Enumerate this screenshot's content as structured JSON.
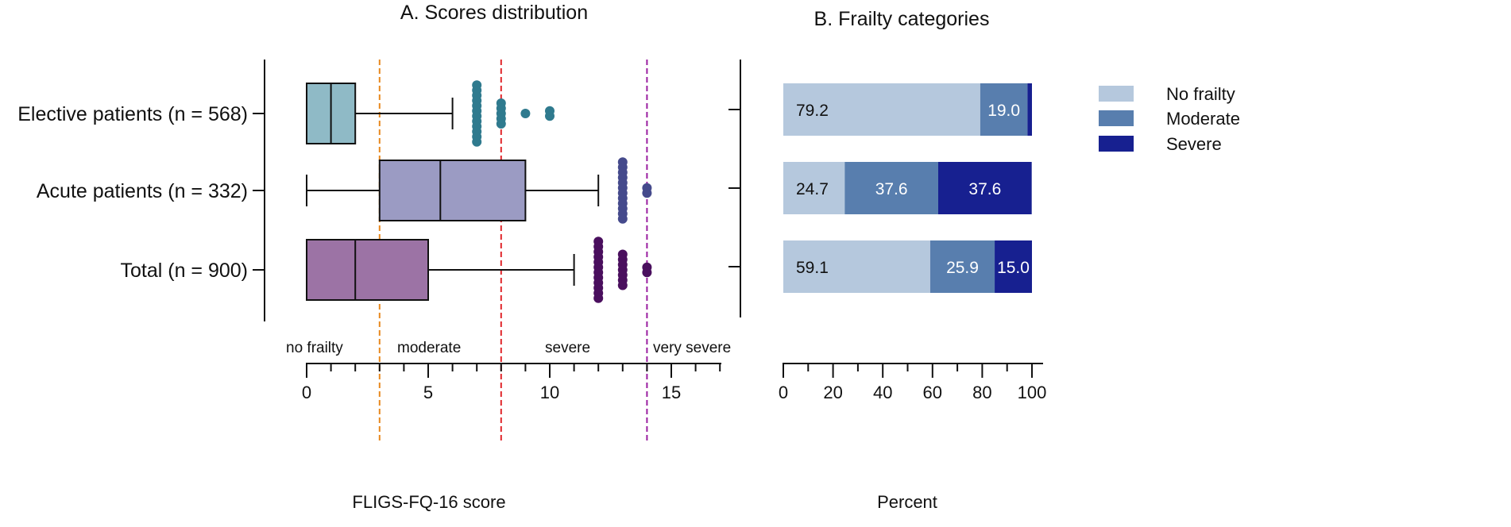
{
  "chart_data": [
    {
      "type": "boxplot",
      "title": "A. Scores distribution",
      "xlabel": "FLIGS-FQ-16 score",
      "xlim": [
        0,
        17
      ],
      "x_major_ticks": [
        0,
        5,
        10,
        15
      ],
      "x_tick_labels": [
        "0",
        "5",
        "10",
        "15"
      ],
      "groups": [
        {
          "label": "Elective patients (n = 568)",
          "min": 0,
          "q1": 0,
          "median": 1,
          "q3": 2,
          "max": 6,
          "outliers": [
            [
              7,
              12
            ],
            [
              8,
              5
            ],
            [
              9,
              1
            ],
            [
              10,
              2
            ]
          ],
          "color": "#8fbac6",
          "outlier_color": "#2f7a8e"
        },
        {
          "label": "Acute patients (n = 332)",
          "min": 0,
          "q1": 3,
          "median": 5.5,
          "q3": 9,
          "max": 12,
          "outliers": [
            [
              13,
              12
            ],
            [
              14,
              2
            ]
          ],
          "color": "#9b9bc3",
          "outlier_color": "#454a8c"
        },
        {
          "label": "Total (n = 900)",
          "min": 0,
          "q1": 0,
          "median": 2,
          "q3": 5,
          "max": 11,
          "outliers": [
            [
              12,
              12
            ],
            [
              13,
              7
            ],
            [
              14,
              2
            ]
          ],
          "color": "#9c73a5",
          "outlier_color": "#4a0f5e"
        }
      ],
      "thresholds": [
        {
          "value": 3,
          "color": "#e8891e"
        },
        {
          "value": 8,
          "color": "#e0262b"
        },
        {
          "value": 14,
          "color": "#9a1ea0"
        }
      ],
      "zones": [
        "no frailty",
        "moderate",
        "severe",
        "very severe"
      ]
    },
    {
      "type": "stacked-bar",
      "title": "B. Frailty categories",
      "xlabel": "Percent",
      "xlim": [
        0,
        100
      ],
      "x_tick_labels": [
        "0",
        "20",
        "40",
        "60",
        "80",
        "100"
      ],
      "legend_position": "right",
      "series": [
        {
          "name": "No frailty",
          "color": "#b5c8dd",
          "values": [
            79.2,
            24.7,
            59.1
          ],
          "labels": [
            "79.2",
            "24.7",
            "59.1"
          ]
        },
        {
          "name": "Moderate",
          "color": "#587eae",
          "values": [
            19.0,
            37.6,
            25.9
          ],
          "labels": [
            "19.0",
            "37.6",
            "25.9"
          ]
        },
        {
          "name": "Severe",
          "color": "#172090",
          "values": [
            1.8,
            37.6,
            15.0
          ],
          "labels": [
            "",
            "37.6",
            "15.0"
          ]
        }
      ]
    }
  ]
}
